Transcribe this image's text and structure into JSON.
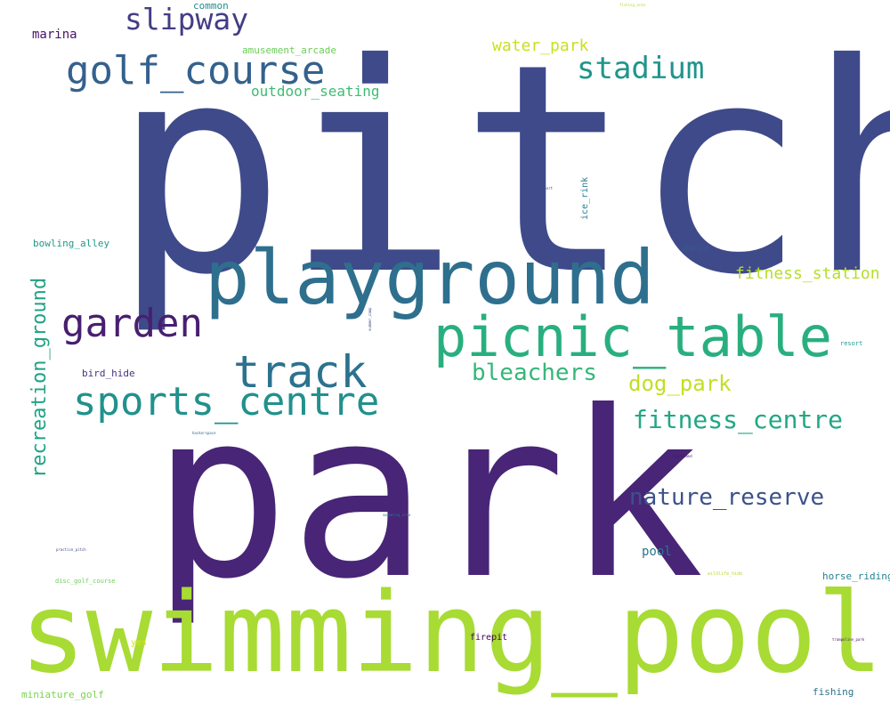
{
  "words": [
    {
      "id": "pitch",
      "text": "pitch",
      "color": "#3f4a8a"
    },
    {
      "id": "park",
      "text": "park",
      "color": "#482576"
    },
    {
      "id": "swimming_pool",
      "text": "swimming_pool",
      "color": "#a8db34"
    },
    {
      "id": "playground",
      "text": "playground",
      "color": "#2e6f8e"
    },
    {
      "id": "picnic_table",
      "text": "picnic_table",
      "color": "#29af7f"
    },
    {
      "id": "golf_course",
      "text": "golf_course",
      "color": "#34618d"
    },
    {
      "id": "garden",
      "text": "garden",
      "color": "#481f70"
    },
    {
      "id": "track",
      "text": "track",
      "color": "#2c728e"
    },
    {
      "id": "sports_centre",
      "text": "sports_centre",
      "color": "#21918c"
    },
    {
      "id": "slipway",
      "text": "slipway",
      "color": "#433e85"
    },
    {
      "id": "stadium",
      "text": "stadium",
      "color": "#1f958b"
    },
    {
      "id": "fitness_centre",
      "text": "fitness_centre",
      "color": "#22a785"
    },
    {
      "id": "nature_reserve",
      "text": "nature_reserve",
      "color": "#3b528b"
    },
    {
      "id": "bleachers",
      "text": "bleachers",
      "color": "#35b779"
    },
    {
      "id": "dog_park",
      "text": "dog_park",
      "color": "#c2df23"
    },
    {
      "id": "recreation_ground",
      "text": "recreation_ground",
      "color": "#20a386"
    },
    {
      "id": "water_park",
      "text": "water_park",
      "color": "#c8e020"
    },
    {
      "id": "outdoor_seating",
      "text": "outdoor_seating",
      "color": "#3dbc74"
    },
    {
      "id": "fitness_station",
      "text": "fitness_station",
      "color": "#b5de2b"
    },
    {
      "id": "marina",
      "text": "marina",
      "color": "#471365"
    },
    {
      "id": "pool",
      "text": "pool",
      "color": "#2a788e"
    },
    {
      "id": "bowling_alley",
      "text": "bowling_alley",
      "color": "#1f9a8a"
    },
    {
      "id": "amusement_arcade",
      "text": "amusement_arcade",
      "color": "#6ccd5a"
    },
    {
      "id": "common",
      "text": "common",
      "color": "#228c8d"
    },
    {
      "id": "bird_hide",
      "text": "bird_hide",
      "color": "#46327e"
    },
    {
      "id": "horse_riding",
      "text": "horse_riding",
      "color": "#25838e"
    },
    {
      "id": "fishing",
      "text": "fishing",
      "color": "#2c728e"
    },
    {
      "id": "miniature_golf",
      "text": "miniature_golf",
      "color": "#7ad151"
    },
    {
      "id": "firepit",
      "text": "firepit",
      "color": "#440154"
    },
    {
      "id": "dance",
      "text": "dance",
      "color": "#38598c"
    },
    {
      "id": "ice_rink",
      "text": "ice_rink",
      "color": "#287c8e"
    },
    {
      "id": "yes",
      "text": "yes",
      "color": "#d8e219"
    },
    {
      "id": "resort",
      "text": "resort",
      "color": "#1e9b8a"
    },
    {
      "id": "disc_golf_course",
      "text": "disc_golf_course",
      "color": "#6ece58"
    },
    {
      "id": "wildlife_hide",
      "text": "wildlife_hide",
      "color": "#b8de29"
    },
    {
      "id": "practice_pitch",
      "text": "practice_pitch",
      "color": "#3e4989"
    },
    {
      "id": "swimming_area",
      "text": "swimming_area",
      "color": "#2d708e"
    },
    {
      "id": "trampoline_park",
      "text": "trampoline_park",
      "color": "#482173"
    },
    {
      "id": "hackerspace",
      "text": "hackerspace",
      "color": "#31688e"
    },
    {
      "id": "bandstand",
      "text": "bandstand",
      "color": "#481a6c"
    },
    {
      "id": "sport",
      "text": "sport",
      "color": "#3e4a89"
    },
    {
      "id": "tiny_top",
      "text": "fishing_area",
      "color": "#b0dd2f"
    },
    {
      "id": "tiny_vert",
      "text": "summer_camp",
      "color": "#3f4788"
    }
  ]
}
